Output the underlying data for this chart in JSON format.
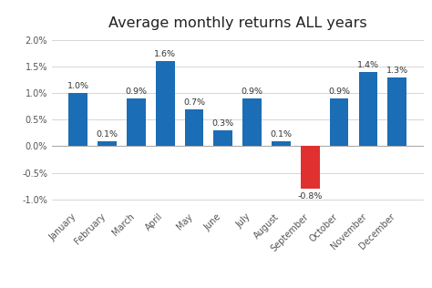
{
  "title": "Average monthly returns ALL years",
  "categories": [
    "January",
    "February",
    "March",
    "April",
    "May",
    "June",
    "July",
    "August",
    "September",
    "October",
    "November",
    "December"
  ],
  "values": [
    1.0,
    0.1,
    0.9,
    1.6,
    0.7,
    0.3,
    0.9,
    0.1,
    -0.8,
    0.9,
    1.4,
    1.3
  ],
  "bar_colors": [
    "#1b6db5",
    "#1b6db5",
    "#1b6db5",
    "#1b6db5",
    "#1b6db5",
    "#1b6db5",
    "#1b6db5",
    "#1b6db5",
    "#e03030",
    "#1b6db5",
    "#1b6db5",
    "#1b6db5"
  ],
  "ylim": [
    -1.15,
    2.1
  ],
  "yticks": [
    -1.0,
    -0.5,
    0.0,
    0.5,
    1.0,
    1.5,
    2.0
  ],
  "tick_label_fontsize": 7.0,
  "title_fontsize": 11.5,
  "bar_label_fontsize": 6.8,
  "background_color": "#ffffff",
  "grid_color": "#d0d0d0",
  "bar_width": 0.65
}
